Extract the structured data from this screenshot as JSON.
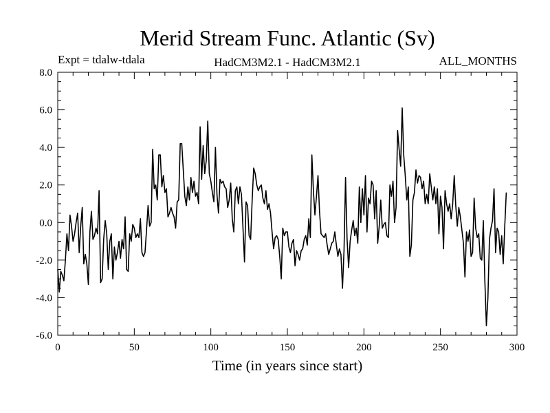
{
  "chart_data": {
    "type": "line",
    "title": "Merid Stream Func. Atlantic (Sv)",
    "subtitle_left": "Expt = tdalw-tdala",
    "subtitle_center": "HadCM3M2.1 - HadCM3M2.1",
    "subtitle_right": "ALL_MONTHS",
    "xlabel": "Time (in years since start)",
    "ylabel": "",
    "xlim": [
      0,
      300
    ],
    "ylim": [
      -6,
      8
    ],
    "x_ticks": [
      0,
      50,
      100,
      150,
      200,
      250,
      300
    ],
    "x_tick_labels": [
      "0",
      "50",
      "100",
      "150",
      "200",
      "250",
      "300"
    ],
    "y_ticks": [
      -6,
      -4,
      -2,
      0,
      2,
      4,
      6,
      8
    ],
    "y_tick_labels": [
      "-6.0",
      "-4.0",
      "-2.0",
      "0.0",
      "2.0",
      "4.0",
      "6.0",
      "8.0"
    ],
    "grid": false,
    "series": [
      {
        "name": "Merid Stream Func. Atlantic",
        "color": "#000000",
        "x_start": 0,
        "x_step": 1,
        "values": [
          -2.5,
          -3.7,
          -2.6,
          -2.8,
          -3.1,
          -2.0,
          -0.6,
          -1.5,
          0.4,
          -0.2,
          -1.0,
          -0.6,
          0.0,
          0.5,
          -1.6,
          -0.2,
          0.8,
          -2.2,
          -1.7,
          -2.2,
          -3.3,
          -0.5,
          0.6,
          -0.9,
          -0.7,
          -0.3,
          -0.6,
          1.7,
          -3.2,
          -3.0,
          -0.9,
          0.1,
          -0.6,
          -2.5,
          -1.0,
          -0.6,
          -3.0,
          -1.3,
          -2.0,
          -1.6,
          -1.0,
          -1.9,
          -0.9,
          -1.4,
          0.3,
          -2.5,
          -2.6,
          -0.6,
          -1.0,
          -0.1,
          -0.3,
          -0.8,
          -0.6,
          -0.8,
          0.2,
          -1.6,
          -1.8,
          -1.6,
          -0.4,
          0.9,
          -0.2,
          0.0,
          3.9,
          1.8,
          2.0,
          1.2,
          3.6,
          3.6,
          1.9,
          2.5,
          1.6,
          1.8,
          0.3,
          0.5,
          0.8,
          0.5,
          0.3,
          -0.3,
          1.1,
          1.2,
          4.2,
          4.2,
          2.8,
          1.4,
          0.9,
          1.9,
          1.2,
          2.4,
          1.6,
          2.2,
          1.4,
          1.6,
          1.0,
          5.1,
          2.3,
          4.1,
          2.6,
          3.3,
          5.4,
          2.6,
          2.2,
          1.6,
          1.1,
          4.0,
          1.5,
          0.5,
          2.3,
          2.1,
          2.2,
          1.9,
          1.8,
          0.8,
          1.2,
          2.1,
          0.2,
          -0.5,
          1.7,
          1.9,
          1.0,
          1.9,
          1.5,
          -0.3,
          -2.1,
          1.1,
          0.9,
          -0.7,
          -0.9,
          1.2,
          2.9,
          2.6,
          2.0,
          1.7,
          1.9,
          2.0,
          1.3,
          1.0,
          1.7,
          0.7,
          1.0,
          0.5,
          -0.5,
          -1.4,
          -0.8,
          -0.7,
          -0.9,
          -1.8,
          -3.0,
          -0.3,
          -0.7,
          -0.5,
          -0.5,
          -1.3,
          -1.6,
          -1.1,
          -0.9,
          -2.3,
          -1.5,
          -1.7,
          -2.0,
          -1.5,
          -1.4,
          -0.9,
          -0.7,
          -1.2,
          0.2,
          -0.8,
          3.6,
          1.7,
          0.4,
          1.4,
          2.5,
          0.6,
          -0.6,
          -0.7,
          -0.8,
          -0.6,
          -1.2,
          -1.7,
          -1.4,
          -1.1,
          -1.0,
          -0.5,
          -1.2,
          -1.8,
          -1.4,
          -1.7,
          -3.5,
          -1.5,
          2.4,
          -0.9,
          -2.4,
          -1.0,
          -0.4,
          0.1,
          -0.7,
          -0.3,
          -1.1,
          1.9,
          0.0,
          1.8,
          0.4,
          2.5,
          -0.5,
          1.3,
          1.0,
          2.2,
          2.0,
          0.2,
          1.7,
          -1.1,
          -0.2,
          1.2,
          -0.3,
          -0.1,
          0.0,
          -0.7,
          -0.8,
          2.0,
          1.4,
          2.2,
          0.0,
          0.8,
          4.9,
          3.9,
          3.0,
          6.1,
          3.6,
          2.5,
          1.2,
          1.9,
          -1.8,
          -1.2,
          1.2,
          1.6,
          2.8,
          2.1,
          2.5,
          2.4,
          1.8,
          2.2,
          1.0,
          1.5,
          1.0,
          2.6,
          1.9,
          1.2,
          1.9,
          1.0,
          1.8,
          -0.6,
          1.4,
          0.8,
          -1.4,
          1.7,
          1.0,
          0.6,
          1.0,
          0.2,
          1.0,
          2.5,
          0.9,
          -0.2,
          0.8,
          0.3,
          -0.4,
          -1.1,
          -2.9,
          -0.5,
          -1.0,
          -0.4,
          -1.8,
          -1.6,
          1.3,
          -0.3,
          -0.8,
          -0.6,
          -1.9,
          -2.0,
          0.1,
          -3.1,
          -5.5,
          -4.0,
          -0.9,
          -0.3,
          0.1,
          1.8,
          -1.6,
          -0.3,
          -0.5,
          -1.7,
          -0.7,
          -2.2,
          -0.2,
          1.6
        ]
      }
    ]
  }
}
